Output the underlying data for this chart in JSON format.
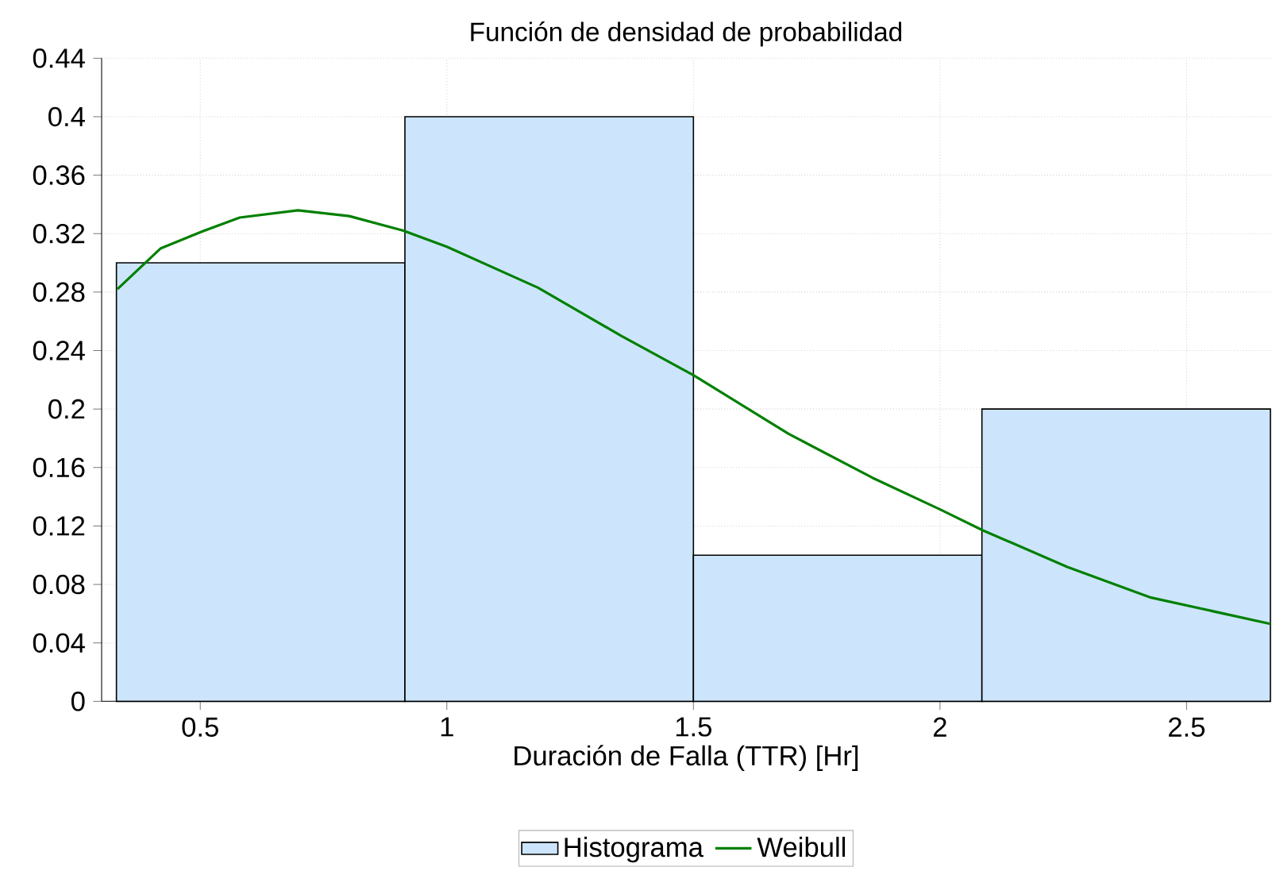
{
  "chart_data": {
    "type": "histogram",
    "title": "Función de densidad de probabilidad",
    "xlabel": "Duración de Falla (TTR) [Hr]",
    "xlim": [
      0.3,
      2.67
    ],
    "ylim": [
      0,
      0.44
    ],
    "xticks": [
      0.5,
      1,
      1.5,
      2,
      2.5
    ],
    "yticks": [
      0,
      0.04,
      0.08,
      0.12,
      0.16,
      0.2,
      0.24,
      0.28,
      0.32,
      0.36,
      0.4,
      0.44
    ],
    "grid": true,
    "legend": "bottom",
    "series": [
      {
        "name": "Histograma",
        "color": "#cce5fc",
        "bins": [
          0.33,
          0.915,
          1.5,
          2.085,
          2.67
        ],
        "values": [
          0.3,
          0.4,
          0.1,
          0.2
        ]
      },
      {
        "name": "Weibull",
        "type": "line",
        "color": "#008000",
        "x": [
          0.332,
          0.42,
          0.5,
          0.58,
          0.698,
          0.802,
          0.912,
          1.0,
          1.185,
          1.354,
          1.501,
          1.693,
          1.863,
          2.002,
          2.087,
          2.258,
          2.428,
          2.67
        ],
        "values": [
          0.282,
          0.31,
          0.321,
          0.331,
          0.336,
          0.332,
          0.322,
          0.311,
          0.283,
          0.25,
          0.223,
          0.183,
          0.153,
          0.131,
          0.117,
          0.092,
          0.071,
          0.053
        ]
      }
    ]
  }
}
